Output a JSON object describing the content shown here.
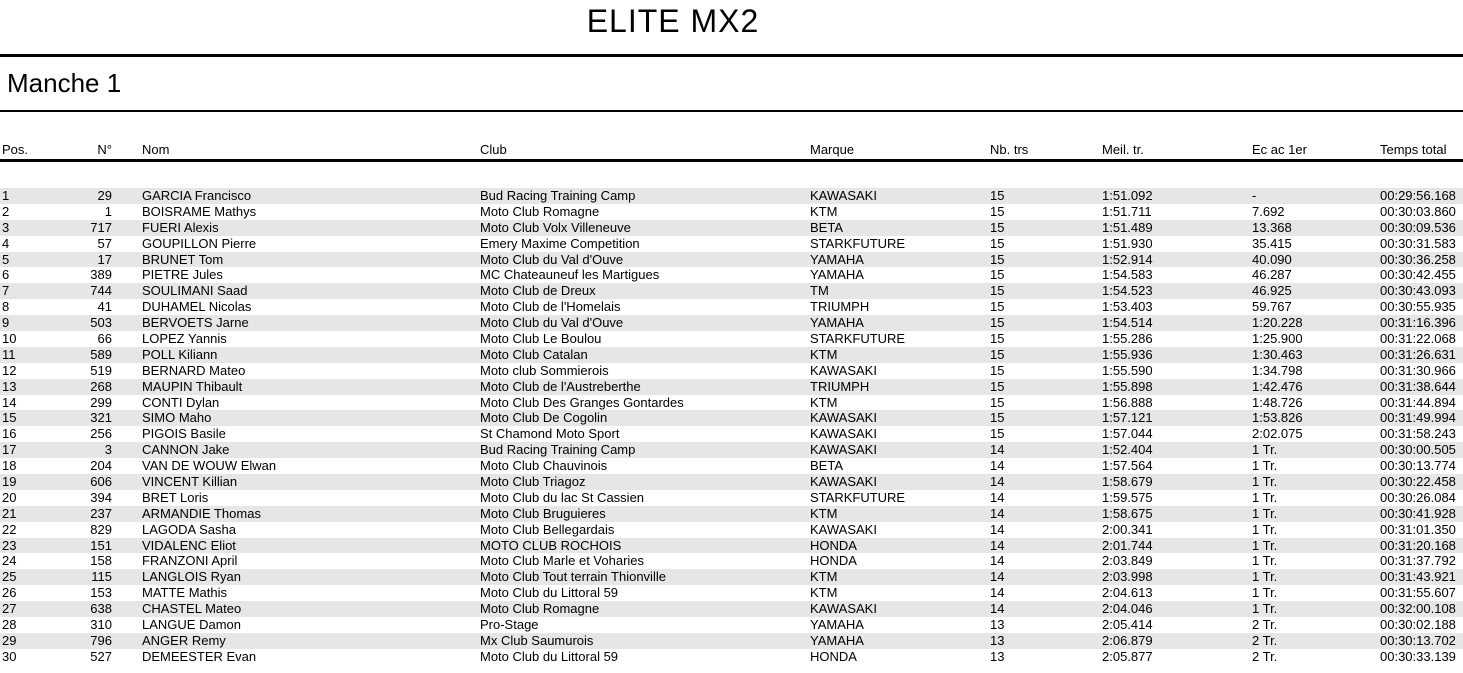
{
  "title": "ELITE MX2",
  "section": {
    "label": "Manche 1"
  },
  "colors": {
    "row_stripe": "#e6e6e6",
    "line": "#000000",
    "text": "#000000",
    "background": "#ffffff"
  },
  "table": {
    "columns": [
      {
        "key": "pos",
        "label": "Pos."
      },
      {
        "key": "num",
        "label": "N°"
      },
      {
        "key": "nom",
        "label": "Nom"
      },
      {
        "key": "club",
        "label": "Club"
      },
      {
        "key": "marque",
        "label": "Marque"
      },
      {
        "key": "nbtrs",
        "label": "Nb. trs"
      },
      {
        "key": "meil",
        "label": "Meil. tr."
      },
      {
        "key": "ec",
        "label": "Ec ac 1er"
      },
      {
        "key": "temps",
        "label": "Temps total"
      }
    ],
    "rows": [
      {
        "pos": "1",
        "num": "29",
        "nom": "GARCIA Francisco",
        "club": "Bud Racing Training Camp",
        "marque": "KAWASAKI",
        "nbtrs": "15",
        "meil": "1:51.092",
        "ec": "-",
        "temps": "00:29:56.168"
      },
      {
        "pos": "2",
        "num": "1",
        "nom": "BOISRAME Mathys",
        "club": "Moto Club Romagne",
        "marque": "KTM",
        "nbtrs": "15",
        "meil": "1:51.711",
        "ec": "7.692",
        "temps": "00:30:03.860"
      },
      {
        "pos": "3",
        "num": "717",
        "nom": "FUERI Alexis",
        "club": "Moto Club Volx Villeneuve",
        "marque": "BETA",
        "nbtrs": "15",
        "meil": "1:51.489",
        "ec": "13.368",
        "temps": "00:30:09.536"
      },
      {
        "pos": "4",
        "num": "57",
        "nom": "GOUPILLON Pierre",
        "club": "Emery Maxime Competition",
        "marque": "STARKFUTURE",
        "nbtrs": "15",
        "meil": "1:51.930",
        "ec": "35.415",
        "temps": "00:30:31.583"
      },
      {
        "pos": "5",
        "num": "17",
        "nom": "BRUNET Tom",
        "club": "Moto Club du Val d'Ouve",
        "marque": "YAMAHA",
        "nbtrs": "15",
        "meil": "1:52.914",
        "ec": "40.090",
        "temps": "00:30:36.258"
      },
      {
        "pos": "6",
        "num": "389",
        "nom": "PIETRE Jules",
        "club": "MC Chateauneuf les Martigues",
        "marque": "YAMAHA",
        "nbtrs": "15",
        "meil": "1:54.583",
        "ec": "46.287",
        "temps": "00:30:42.455"
      },
      {
        "pos": "7",
        "num": "744",
        "nom": "SOULIMANI Saad",
        "club": "Moto Club de Dreux",
        "marque": "TM",
        "nbtrs": "15",
        "meil": "1:54.523",
        "ec": "46.925",
        "temps": "00:30:43.093"
      },
      {
        "pos": "8",
        "num": "41",
        "nom": "DUHAMEL Nicolas",
        "club": "Moto Club de l'Homelais",
        "marque": "TRIUMPH",
        "nbtrs": "15",
        "meil": "1:53.403",
        "ec": "59.767",
        "temps": "00:30:55.935"
      },
      {
        "pos": "9",
        "num": "503",
        "nom": "BERVOETS Jarne",
        "club": "Moto Club du Val d'Ouve",
        "marque": "YAMAHA",
        "nbtrs": "15",
        "meil": "1:54.514",
        "ec": "1:20.228",
        "temps": "00:31:16.396"
      },
      {
        "pos": "10",
        "num": "66",
        "nom": "LOPEZ Yannis",
        "club": "Moto Club Le Boulou",
        "marque": "STARKFUTURE",
        "nbtrs": "15",
        "meil": "1:55.286",
        "ec": "1:25.900",
        "temps": "00:31:22.068"
      },
      {
        "pos": "11",
        "num": "589",
        "nom": "POLL Kiliann",
        "club": "Moto Club Catalan",
        "marque": "KTM",
        "nbtrs": "15",
        "meil": "1:55.936",
        "ec": "1:30.463",
        "temps": "00:31:26.631"
      },
      {
        "pos": "12",
        "num": "519",
        "nom": "BERNARD Mateo",
        "club": "Moto club Sommierois",
        "marque": "KAWASAKI",
        "nbtrs": "15",
        "meil": "1:55.590",
        "ec": "1:34.798",
        "temps": "00:31:30.966"
      },
      {
        "pos": "13",
        "num": "268",
        "nom": "MAUPIN Thibault",
        "club": "Moto Club de l'Austreberthe",
        "marque": "TRIUMPH",
        "nbtrs": "15",
        "meil": "1:55.898",
        "ec": "1:42.476",
        "temps": "00:31:38.644"
      },
      {
        "pos": "14",
        "num": "299",
        "nom": "CONTI Dylan",
        "club": "Moto Club Des Granges Gontardes",
        "marque": "KTM",
        "nbtrs": "15",
        "meil": "1:56.888",
        "ec": "1:48.726",
        "temps": "00:31:44.894"
      },
      {
        "pos": "15",
        "num": "321",
        "nom": "SIMO Maho",
        "club": "Moto Club De Cogolin",
        "marque": "KAWASAKI",
        "nbtrs": "15",
        "meil": "1:57.121",
        "ec": "1:53.826",
        "temps": "00:31:49.994"
      },
      {
        "pos": "16",
        "num": "256",
        "nom": "PIGOIS Basile",
        "club": "St Chamond Moto Sport",
        "marque": "KAWASAKI",
        "nbtrs": "15",
        "meil": "1:57.044",
        "ec": "2:02.075",
        "temps": "00:31:58.243"
      },
      {
        "pos": "17",
        "num": "3",
        "nom": "CANNON Jake",
        "club": "Bud Racing Training Camp",
        "marque": "KAWASAKI",
        "nbtrs": "14",
        "meil": "1:52.404",
        "ec": "1 Tr.",
        "temps": "00:30:00.505"
      },
      {
        "pos": "18",
        "num": "204",
        "nom": "VAN DE WOUW Elwan",
        "club": "Moto Club Chauvinois",
        "marque": "BETA",
        "nbtrs": "14",
        "meil": "1:57.564",
        "ec": "1 Tr.",
        "temps": "00:30:13.774"
      },
      {
        "pos": "19",
        "num": "606",
        "nom": "VINCENT Killian",
        "club": "Moto Club Triagoz",
        "marque": "KAWASAKI",
        "nbtrs": "14",
        "meil": "1:58.679",
        "ec": "1 Tr.",
        "temps": "00:30:22.458"
      },
      {
        "pos": "20",
        "num": "394",
        "nom": "BRET Loris",
        "club": "Moto Club du lac St Cassien",
        "marque": "STARKFUTURE",
        "nbtrs": "14",
        "meil": "1:59.575",
        "ec": "1 Tr.",
        "temps": "00:30:26.084"
      },
      {
        "pos": "21",
        "num": "237",
        "nom": "ARMANDIE Thomas",
        "club": "Moto Club Bruguieres",
        "marque": "KTM",
        "nbtrs": "14",
        "meil": "1:58.675",
        "ec": "1 Tr.",
        "temps": "00:30:41.928"
      },
      {
        "pos": "22",
        "num": "829",
        "nom": "LAGODA Sasha",
        "club": "Moto Club Bellegardais",
        "marque": "KAWASAKI",
        "nbtrs": "14",
        "meil": "2:00.341",
        "ec": "1 Tr.",
        "temps": "00:31:01.350"
      },
      {
        "pos": "23",
        "num": "151",
        "nom": "VIDALENC Eliot",
        "club": "MOTO CLUB ROCHOIS",
        "marque": "HONDA",
        "nbtrs": "14",
        "meil": "2:01.744",
        "ec": "1 Tr.",
        "temps": "00:31:20.168"
      },
      {
        "pos": "24",
        "num": "158",
        "nom": "FRANZONI April",
        "club": "Moto Club Marle et Voharies",
        "marque": "HONDA",
        "nbtrs": "14",
        "meil": "2:03.849",
        "ec": "1 Tr.",
        "temps": "00:31:37.792"
      },
      {
        "pos": "25",
        "num": "115",
        "nom": "LANGLOIS Ryan",
        "club": "Moto Club Tout terrain Thionville",
        "marque": "KTM",
        "nbtrs": "14",
        "meil": "2:03.998",
        "ec": "1 Tr.",
        "temps": "00:31:43.921"
      },
      {
        "pos": "26",
        "num": "153",
        "nom": "MATTE Mathis",
        "club": "Moto Club du Littoral 59",
        "marque": "KTM",
        "nbtrs": "14",
        "meil": "2:04.613",
        "ec": "1 Tr.",
        "temps": "00:31:55.607"
      },
      {
        "pos": "27",
        "num": "638",
        "nom": "CHASTEL Mateo",
        "club": "Moto Club Romagne",
        "marque": "KAWASAKI",
        "nbtrs": "14",
        "meil": "2:04.046",
        "ec": "1 Tr.",
        "temps": "00:32:00.108"
      },
      {
        "pos": "28",
        "num": "310",
        "nom": "LANGUE Damon",
        "club": "Pro-Stage",
        "marque": "YAMAHA",
        "nbtrs": "13",
        "meil": "2:05.414",
        "ec": "2 Tr.",
        "temps": "00:30:02.188"
      },
      {
        "pos": "29",
        "num": "796",
        "nom": "ANGER Remy",
        "club": "Mx Club Saumurois",
        "marque": "YAMAHA",
        "nbtrs": "13",
        "meil": "2:06.879",
        "ec": "2 Tr.",
        "temps": "00:30:13.702"
      },
      {
        "pos": "30",
        "num": "527",
        "nom": "DEMEESTER Evan",
        "club": "Moto Club du Littoral 59",
        "marque": "HONDA",
        "nbtrs": "13",
        "meil": "2:05.877",
        "ec": "2 Tr.",
        "temps": "00:30:33.139"
      }
    ]
  }
}
